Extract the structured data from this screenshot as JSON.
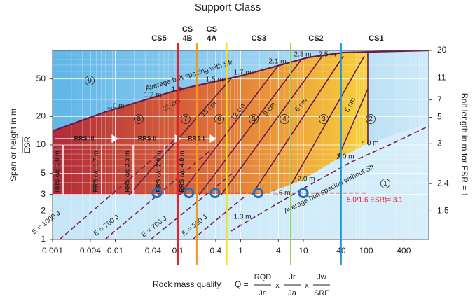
{
  "chart_data": {
    "type": "support-chart",
    "title": "Support Class",
    "y_label": "Span or height in m",
    "y_label_denominator": "ESR",
    "y2_label": "Bolt length in m for ESR = 1",
    "x_label": "Rock mass quality",
    "formula": {
      "lhs": "Q =",
      "operator": "x",
      "terms": [
        [
          "RQD",
          "Jn"
        ],
        [
          "Jr",
          "Ja"
        ],
        [
          "Jw",
          "SRF"
        ]
      ]
    },
    "x_scale": "log",
    "y_scale": "log",
    "xlim": [
      0.001,
      1000
    ],
    "ylim": [
      1,
      100
    ],
    "xticks": [
      0.001,
      0.004,
      0.01,
      0.04,
      0.1,
      0.4,
      1,
      4,
      10,
      40,
      100,
      400
    ],
    "yticks": [
      1,
      2,
      3,
      5,
      10,
      20,
      50
    ],
    "y2lim": [
      1,
      100
    ],
    "y2ticks": [
      {
        "value": 2,
        "label": "1.5"
      },
      {
        "value": 3.9,
        "label": "2.4"
      },
      {
        "value": 10.3,
        "label": "3"
      },
      {
        "value": 19.6,
        "label": "5"
      },
      {
        "value": 30,
        "label": "7"
      },
      {
        "value": 51,
        "label": "11"
      },
      {
        "value": 100,
        "label": "20"
      }
    ],
    "grid": true,
    "support_classes": [
      {
        "label": [
          "CS5"
        ],
        "color": "#e8202a",
        "q": 0.1
      },
      {
        "label": [
          "CS",
          "4B"
        ],
        "color": "#f39a1e",
        "q": 0.2
      },
      {
        "label": [
          "CS",
          "4A"
        ],
        "color": "#f5e11a",
        "q": 0.6
      },
      {
        "label": [
          "CS3"
        ],
        "color": "#8fd14f",
        "q": 6.3
      },
      {
        "label": [
          "CS2"
        ],
        "color": "#1e9ad6",
        "q": 40
      },
      {
        "label": [
          "CS1"
        ]
      }
    ],
    "points": {
      "x": [
        0.046,
        0.15,
        0.39,
        1.9,
        10
      ],
      "y": [
        3.1,
        3.1,
        3.1,
        3.1,
        3.1
      ],
      "color": "#1f6fc0"
    },
    "threshold": {
      "value": 3.1,
      "label": "5.0/1.6 ESR)= 3.1",
      "color": "#e8202a"
    },
    "regions": [
      "1",
      "2",
      "3",
      "4",
      "5",
      "6",
      "7",
      "8",
      "9"
    ],
    "annotations": [
      "Average bolt spacing with Sfr",
      "Average bolt spacing without Sfr",
      "1.0 m",
      "1.2 m",
      "1.3 m",
      "1.5 m",
      "1.7 m",
      "2.1 m",
      "2.3 m",
      "2.5 m",
      "4.0 m",
      "3.0 m",
      "2.0 m",
      "1.6 m",
      "1.3 m",
      "25 cm",
      "15 cm",
      "12 cm",
      "9 cm",
      "6 cm",
      "5 cm",
      "RRS III",
      "RRS II",
      "RRS I",
      "RRS c/c 1.0 m",
      "RRS c/c 1.7 m",
      "RRS c/c 2.3 m",
      "RRS c/c 2.9 m",
      "RRS c/c 4.0 m",
      "E = 1000 J",
      "E = 700 J",
      "E = 700 J",
      "E = 500 J"
    ]
  }
}
